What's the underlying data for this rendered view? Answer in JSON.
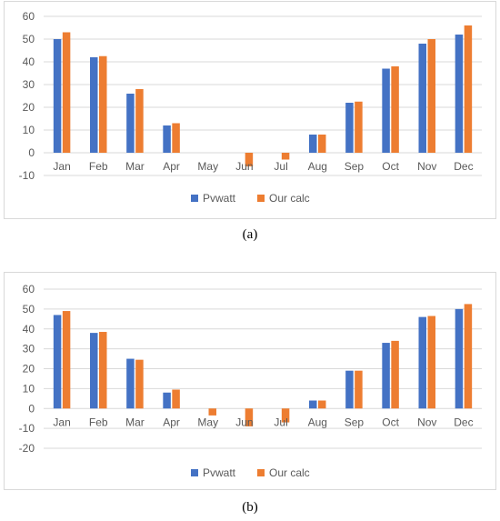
{
  "chart_data": [
    {
      "type": "bar",
      "caption": "(a)",
      "categories": [
        "Jan",
        "Feb",
        "Mar",
        "Apr",
        "May",
        "Jun",
        "Jul",
        "Aug",
        "Sep",
        "Oct",
        "Nov",
        "Dec"
      ],
      "series": [
        {
          "name": "Pvwatt",
          "color": "#4472C4",
          "values": [
            50,
            42,
            26,
            12,
            0,
            0,
            0,
            8,
            22,
            37,
            48,
            52
          ]
        },
        {
          "name": "Our calc",
          "color": "#ED7D31",
          "values": [
            53,
            42.5,
            28,
            13,
            0,
            -6,
            -3,
            8,
            22.5,
            38,
            50,
            56
          ]
        }
      ],
      "ylim": [
        -10,
        60
      ],
      "yticks": [
        -10,
        0,
        10,
        20,
        30,
        40,
        50,
        60
      ],
      "grid": true,
      "legend": "bottom"
    },
    {
      "type": "bar",
      "caption": "(b)",
      "categories": [
        "Jan",
        "Feb",
        "Mar",
        "Apr",
        "May",
        "Jun",
        "Jul",
        "Aug",
        "Sep",
        "Oct",
        "Nov",
        "Dec"
      ],
      "series": [
        {
          "name": "Pvwatt",
          "color": "#4472C4",
          "values": [
            47,
            38,
            25,
            8,
            0,
            0,
            0,
            4,
            19,
            33,
            46,
            50
          ]
        },
        {
          "name": "Our calc",
          "color": "#ED7D31",
          "values": [
            49,
            38.5,
            24.5,
            9.5,
            -3.5,
            -9,
            -7,
            4,
            19,
            34,
            46.5,
            52.5
          ]
        }
      ],
      "ylim": [
        -20,
        60
      ],
      "yticks": [
        -20,
        -10,
        0,
        10,
        20,
        30,
        40,
        50,
        60
      ],
      "grid": true,
      "legend": "bottom"
    }
  ]
}
